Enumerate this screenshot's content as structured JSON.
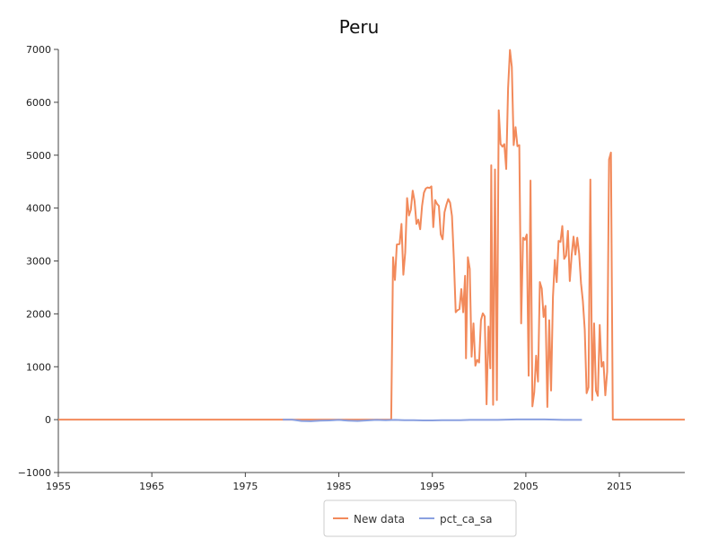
{
  "chart_data": {
    "type": "line",
    "title": "Peru",
    "xlabel": "",
    "ylabel": "",
    "xlim": [
      1955,
      2022
    ],
    "ylim": [
      -1000,
      7000
    ],
    "x_ticks": [
      1955,
      1965,
      1975,
      1985,
      1995,
      2005,
      2015
    ],
    "y_ticks": [
      -1000,
      0,
      1000,
      2000,
      3000,
      4000,
      5000,
      6000,
      7000
    ],
    "grid": false,
    "legend_position": "bottom-center",
    "series": [
      {
        "name": "New data",
        "color": "#f28a5b",
        "points": [
          [
            1955,
            0
          ],
          [
            1990.6,
            0
          ],
          [
            1990.8,
            3070
          ],
          [
            1991.0,
            2640
          ],
          [
            1991.2,
            3310
          ],
          [
            1991.5,
            3320
          ],
          [
            1991.7,
            3700
          ],
          [
            1991.9,
            2740
          ],
          [
            1992.1,
            3160
          ],
          [
            1992.3,
            4190
          ],
          [
            1992.5,
            3860
          ],
          [
            1992.7,
            3970
          ],
          [
            1992.9,
            4330
          ],
          [
            1993.1,
            4130
          ],
          [
            1993.3,
            3700
          ],
          [
            1993.5,
            3780
          ],
          [
            1993.7,
            3600
          ],
          [
            1993.9,
            4040
          ],
          [
            1994.1,
            4290
          ],
          [
            1994.3,
            4370
          ],
          [
            1994.5,
            4390
          ],
          [
            1994.7,
            4380
          ],
          [
            1994.9,
            4410
          ],
          [
            1995.1,
            3640
          ],
          [
            1995.3,
            4150
          ],
          [
            1995.5,
            4080
          ],
          [
            1995.7,
            4040
          ],
          [
            1995.9,
            3500
          ],
          [
            1996.1,
            3410
          ],
          [
            1996.3,
            3920
          ],
          [
            1996.5,
            4060
          ],
          [
            1996.7,
            4170
          ],
          [
            1996.9,
            4100
          ],
          [
            1997.1,
            3850
          ],
          [
            1997.3,
            3040
          ],
          [
            1997.5,
            2030
          ],
          [
            1997.7,
            2070
          ],
          [
            1997.9,
            2090
          ],
          [
            1998.1,
            2470
          ],
          [
            1998.3,
            2030
          ],
          [
            1998.5,
            2720
          ],
          [
            1998.6,
            1160
          ],
          [
            1998.8,
            3070
          ],
          [
            1999.0,
            2850
          ],
          [
            1999.2,
            1190
          ],
          [
            1999.4,
            1820
          ],
          [
            1999.6,
            1020
          ],
          [
            1999.8,
            1130
          ],
          [
            2000.0,
            1080
          ],
          [
            2000.2,
            1880
          ],
          [
            2000.4,
            2010
          ],
          [
            2000.6,
            1950
          ],
          [
            2000.8,
            290
          ],
          [
            2001.0,
            1760
          ],
          [
            2001.2,
            970
          ],
          [
            2001.3,
            4810
          ],
          [
            2001.5,
            280
          ],
          [
            2001.7,
            4730
          ],
          [
            2001.9,
            370
          ],
          [
            2002.1,
            5850
          ],
          [
            2002.3,
            5210
          ],
          [
            2002.5,
            5160
          ],
          [
            2002.7,
            5210
          ],
          [
            2002.9,
            4740
          ],
          [
            2003.1,
            6260
          ],
          [
            2003.3,
            6990
          ],
          [
            2003.5,
            6670
          ],
          [
            2003.7,
            5190
          ],
          [
            2003.9,
            5530
          ],
          [
            2004.1,
            5170
          ],
          [
            2004.3,
            5190
          ],
          [
            2004.5,
            1820
          ],
          [
            2004.7,
            3440
          ],
          [
            2004.9,
            3400
          ],
          [
            2005.1,
            3500
          ],
          [
            2005.3,
            830
          ],
          [
            2005.5,
            4520
          ],
          [
            2005.7,
            250
          ],
          [
            2005.9,
            520
          ],
          [
            2006.1,
            1210
          ],
          [
            2006.3,
            720
          ],
          [
            2006.5,
            2600
          ],
          [
            2006.7,
            2480
          ],
          [
            2006.9,
            1940
          ],
          [
            2007.1,
            2150
          ],
          [
            2007.3,
            240
          ],
          [
            2007.5,
            1880
          ],
          [
            2007.7,
            550
          ],
          [
            2007.9,
            2320
          ],
          [
            2008.1,
            3020
          ],
          [
            2008.3,
            2600
          ],
          [
            2008.5,
            3380
          ],
          [
            2008.7,
            3360
          ],
          [
            2008.9,
            3660
          ],
          [
            2009.1,
            3040
          ],
          [
            2009.3,
            3100
          ],
          [
            2009.5,
            3570
          ],
          [
            2009.7,
            2620
          ],
          [
            2009.9,
            3110
          ],
          [
            2010.1,
            3460
          ],
          [
            2010.3,
            3120
          ],
          [
            2010.5,
            3440
          ],
          [
            2010.7,
            3140
          ],
          [
            2010.9,
            2580
          ],
          [
            2011.1,
            2240
          ],
          [
            2011.3,
            1700
          ],
          [
            2011.5,
            500
          ],
          [
            2011.7,
            610
          ],
          [
            2011.9,
            4540
          ],
          [
            2012.1,
            370
          ],
          [
            2012.3,
            1820
          ],
          [
            2012.5,
            550
          ],
          [
            2012.7,
            450
          ],
          [
            2012.9,
            1790
          ],
          [
            2013.1,
            1000
          ],
          [
            2013.3,
            1090
          ],
          [
            2013.5,
            460
          ],
          [
            2013.7,
            910
          ],
          [
            2013.9,
            4920
          ],
          [
            2014.1,
            5050
          ],
          [
            2014.3,
            0
          ],
          [
            2022,
            0
          ]
        ]
      },
      {
        "name": "pct_ca_sa",
        "color": "#8aa0e0",
        "points": [
          [
            1979.0,
            0
          ],
          [
            1980.0,
            0
          ],
          [
            1981.0,
            -25
          ],
          [
            1982.0,
            -30
          ],
          [
            1983.0,
            -20
          ],
          [
            1984.0,
            -15
          ],
          [
            1985.0,
            -5
          ],
          [
            1986.0,
            -20
          ],
          [
            1987.0,
            -25
          ],
          [
            1988.0,
            -15
          ],
          [
            1989.0,
            -5
          ],
          [
            1990.0,
            -10
          ],
          [
            1991.0,
            -5
          ],
          [
            1992.0,
            -10
          ],
          [
            1993.0,
            -10
          ],
          [
            1994.0,
            -15
          ],
          [
            1995.0,
            -15
          ],
          [
            1996.0,
            -10
          ],
          [
            1997.0,
            -10
          ],
          [
            1998.0,
            -10
          ],
          [
            1999.0,
            -5
          ],
          [
            2000.0,
            -5
          ],
          [
            2001.0,
            -5
          ],
          [
            2002.0,
            -5
          ],
          [
            2003.0,
            0
          ],
          [
            2004.0,
            5
          ],
          [
            2005.0,
            5
          ],
          [
            2006.0,
            5
          ],
          [
            2007.0,
            5
          ],
          [
            2008.0,
            0
          ],
          [
            2009.0,
            -5
          ],
          [
            2010.0,
            -5
          ],
          [
            2011.0,
            -5
          ]
        ]
      }
    ]
  }
}
